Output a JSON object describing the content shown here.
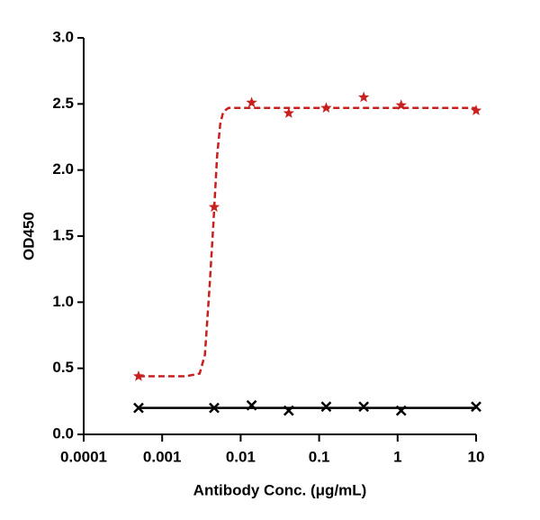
{
  "chart_data": {
    "type": "scatter",
    "xlabel": "Antibody Conc. (μg/mL)",
    "ylabel": "OD450",
    "xscale": "log",
    "xlim": [
      0.0001,
      10
    ],
    "ylim": [
      0,
      3
    ],
    "xticks": [
      0.0001,
      0.001,
      0.01,
      0.1,
      1,
      10
    ],
    "yticks": [
      {
        "value": 0,
        "label": "0.0"
      },
      {
        "value": 0.5,
        "label": "0.5"
      },
      {
        "value": 1,
        "label": "1.0"
      },
      {
        "value": 1.5,
        "label": "1.5"
      },
      {
        "value": 2,
        "label": "2.0"
      },
      {
        "value": 2.5,
        "label": "2.5"
      },
      {
        "value": 3,
        "label": "3.0"
      }
    ],
    "series": [
      {
        "color": "#c8201c",
        "marker": "star",
        "x": [
          0.0005,
          0.0046,
          0.0138,
          0.041,
          0.123,
          0.37,
          1.11,
          10
        ],
        "values": [
          0.44,
          1.72,
          2.51,
          2.43,
          2.47,
          2.55,
          2.49,
          2.45
        ]
      },
      {
        "color": "#000000",
        "marker": "x",
        "x": [
          0.0005,
          0.0046,
          0.0138,
          0.041,
          0.123,
          0.37,
          1.11,
          10
        ],
        "values": [
          0.2,
          0.2,
          0.22,
          0.18,
          0.21,
          0.21,
          0.18,
          0.21
        ]
      }
    ],
    "fits": [
      {
        "color": "#c8201c",
        "dashed": true,
        "x": [
          0.0005,
          0.001,
          0.002,
          0.003,
          0.0035,
          0.004,
          0.0045,
          0.005,
          0.0055,
          0.006,
          0.007,
          0.01,
          0.1,
          1,
          10
        ],
        "values": [
          0.44,
          0.44,
          0.44,
          0.46,
          0.6,
          1.1,
          1.6,
          2.1,
          2.35,
          2.44,
          2.47,
          2.47,
          2.47,
          2.47,
          2.47
        ]
      },
      {
        "color": "#000000",
        "dashed": false,
        "x": [
          0.0005,
          10
        ],
        "values": [
          0.2,
          0.2
        ]
      }
    ]
  }
}
